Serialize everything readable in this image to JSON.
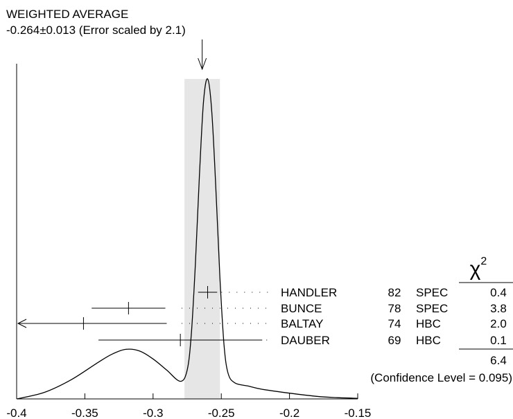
{
  "chart_data": {
    "type": "ideogram",
    "title": "WEIGHTED AVERAGE",
    "subtitle": "-0.264±0.013 (Error scaled by 2.1)",
    "weighted_average": {
      "value": -0.264,
      "error": 0.013,
      "scale_factor": 2.1
    },
    "xlim": [
      -0.4,
      -0.15
    ],
    "xticks": [
      {
        "v": -0.4,
        "label": "-0.4"
      },
      {
        "v": -0.35,
        "label": "-0.35"
      },
      {
        "v": -0.3,
        "label": "-0.3"
      },
      {
        "v": -0.25,
        "label": "-0.25"
      },
      {
        "v": -0.2,
        "label": "-0.2"
      },
      {
        "v": -0.15,
        "label": "-0.15"
      }
    ],
    "chi2_header": "χ",
    "chi2_exponent": "2",
    "measurements": [
      {
        "name": "HANDLER",
        "year": "82",
        "tech": "SPEC",
        "chi2": "0.4",
        "value": -0.26,
        "error": 0.007,
        "arrow_left": false
      },
      {
        "name": "BUNCE",
        "year": "78",
        "tech": "SPEC",
        "chi2": "3.8",
        "value": -0.318,
        "error": 0.027,
        "arrow_left": false
      },
      {
        "name": "BALTAY",
        "year": "74",
        "tech": "HBC",
        "chi2": "2.0",
        "value": -0.351,
        "error": 0.061,
        "arrow_left": true
      },
      {
        "name": "DAUBER",
        "year": "69",
        "tech": "HBC",
        "chi2": "0.1",
        "value": -0.28,
        "error": 0.06,
        "arrow_left": false
      }
    ],
    "chi2_total": "6.4",
    "confidence_level": "(Confidence Level = 0.095)",
    "curve": [
      [
        -0.4,
        0.0
      ],
      [
        -0.38,
        0.02
      ],
      [
        -0.36,
        0.06
      ],
      [
        -0.34,
        0.115
      ],
      [
        -0.33,
        0.14
      ],
      [
        -0.32,
        0.155
      ],
      [
        -0.31,
        0.15
      ],
      [
        -0.3,
        0.125
      ],
      [
        -0.29,
        0.09
      ],
      [
        -0.28,
        0.055
      ],
      [
        -0.275,
        0.09
      ],
      [
        -0.272,
        0.2
      ],
      [
        -0.269,
        0.42
      ],
      [
        -0.266,
        0.7
      ],
      [
        -0.263,
        0.93
      ],
      [
        -0.26,
        1.0
      ],
      [
        -0.257,
        0.9
      ],
      [
        -0.254,
        0.66
      ],
      [
        -0.251,
        0.38
      ],
      [
        -0.248,
        0.17
      ],
      [
        -0.245,
        0.08
      ],
      [
        -0.24,
        0.05
      ],
      [
        -0.23,
        0.04
      ],
      [
        -0.22,
        0.03
      ],
      [
        -0.2,
        0.018
      ],
      [
        -0.18,
        0.008
      ],
      [
        -0.165,
        0.004
      ],
      [
        -0.15,
        0.002
      ]
    ],
    "grid": false,
    "legend": "none"
  }
}
